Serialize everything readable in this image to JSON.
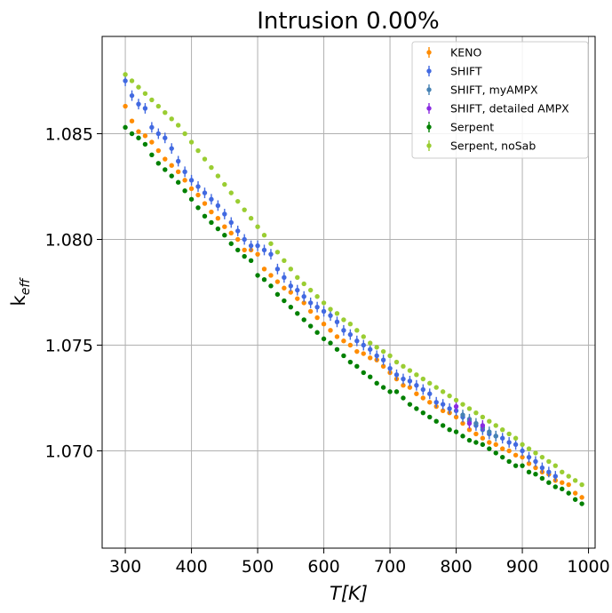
{
  "chart_data": {
    "type": "scatter",
    "title": "Intrusion  0.00%",
    "xlabel": "T[K]",
    "ylabel": "k_eff",
    "ylabel_main": "k",
    "ylabel_sub": "eff",
    "xlim": [
      265,
      1010
    ],
    "ylim": [
      1.0654,
      1.0896
    ],
    "xticks": [
      300,
      400,
      500,
      600,
      700,
      800,
      900,
      1000
    ],
    "xtick_labels": [
      "300",
      "400",
      "500",
      "600",
      "700",
      "800",
      "900",
      "1000"
    ],
    "yticks": [
      1.07,
      1.075,
      1.08,
      1.085
    ],
    "ytick_labels": [
      "1.070",
      "1.075",
      "1.080",
      "1.085"
    ],
    "grid": true,
    "legend_position": "top-right",
    "series": [
      {
        "name": "KENO",
        "color": "#ff8c00",
        "has_error_bars": true,
        "x": [
          300,
          310,
          320,
          330,
          340,
          350,
          360,
          370,
          380,
          390,
          400,
          410,
          420,
          430,
          440,
          450,
          460,
          470,
          480,
          490,
          500,
          510,
          520,
          530,
          540,
          550,
          560,
          570,
          580,
          590,
          600,
          610,
          620,
          630,
          640,
          650,
          660,
          670,
          680,
          690,
          700,
          710,
          720,
          730,
          740,
          750,
          760,
          770,
          780,
          790,
          800,
          810,
          820,
          830,
          840,
          850,
          860,
          870,
          880,
          890,
          900,
          910,
          920,
          930,
          940,
          950,
          960,
          970,
          980,
          990
        ],
        "y": [
          1.0863,
          1.0856,
          1.0851,
          1.0849,
          1.0846,
          1.0842,
          1.0838,
          1.0835,
          1.0832,
          1.0828,
          1.0824,
          1.0821,
          1.0817,
          1.0813,
          1.081,
          1.0806,
          1.0803,
          1.08,
          1.0795,
          1.0795,
          1.0793,
          1.0786,
          1.0783,
          1.078,
          1.0777,
          1.0775,
          1.0772,
          1.077,
          1.0766,
          1.0763,
          1.076,
          1.0757,
          1.0754,
          1.0752,
          1.075,
          1.0747,
          1.0746,
          1.0744,
          1.0743,
          1.074,
          1.0737,
          1.0734,
          1.0731,
          1.073,
          1.0727,
          1.0725,
          1.0723,
          1.0721,
          1.0719,
          1.0718,
          1.0716,
          1.0713,
          1.071,
          1.0708,
          1.0706,
          1.0704,
          1.0703,
          1.0701,
          1.07,
          1.0698,
          1.0697,
          1.0694,
          1.0692,
          1.069,
          1.0689,
          1.0686,
          1.0685,
          1.0684,
          1.068,
          1.0678
        ],
        "yerr": 6e-05
      },
      {
        "name": "SHIFT",
        "color": "#4169e1",
        "has_error_bars": true,
        "x": [
          300,
          310,
          320,
          330,
          340,
          350,
          360,
          370,
          380,
          390,
          400,
          410,
          420,
          430,
          440,
          450,
          460,
          470,
          480,
          490,
          500,
          510,
          520,
          530,
          540,
          550,
          560,
          570,
          580,
          590,
          600,
          610,
          620,
          630,
          640,
          650,
          660,
          670,
          680,
          690,
          700,
          710,
          720,
          730,
          740,
          750,
          760,
          770,
          780,
          790,
          800,
          810,
          820,
          830,
          840,
          850,
          860,
          870,
          880,
          890,
          900,
          910,
          920,
          930,
          940,
          950
        ],
        "y": [
          1.0875,
          1.0868,
          1.0864,
          1.0862,
          1.0853,
          1.085,
          1.0848,
          1.0843,
          1.0837,
          1.0832,
          1.0828,
          1.0825,
          1.0822,
          1.0819,
          1.0816,
          1.0812,
          1.0808,
          1.0804,
          1.08,
          1.0797,
          1.0797,
          1.0795,
          1.0793,
          1.0786,
          1.0782,
          1.0778,
          1.0776,
          1.0773,
          1.077,
          1.0768,
          1.0766,
          1.0764,
          1.0761,
          1.0757,
          1.0755,
          1.0752,
          1.075,
          1.0748,
          1.0745,
          1.0743,
          1.0739,
          1.0736,
          1.0734,
          1.0733,
          1.0731,
          1.0729,
          1.0727,
          1.0723,
          1.0722,
          1.072,
          1.0719,
          1.0716,
          1.0714,
          1.0712,
          1.071,
          1.0708,
          1.0707,
          1.0706,
          1.0704,
          1.0703,
          1.07,
          1.0697,
          1.0695,
          1.0692,
          1.069,
          1.0688
        ],
        "yerr": 0.00025
      },
      {
        "name": "SHIFT, myAMPX",
        "color": "#4682b4",
        "has_error_bars": true,
        "x": [
          810,
          820,
          830,
          840,
          850,
          860
        ],
        "y": [
          1.0717,
          1.0715,
          1.0713,
          1.0711,
          1.0709,
          1.0707
        ],
        "yerr": 0.00025
      },
      {
        "name": "SHIFT, detailed AMPX",
        "color": "#8a2be2",
        "has_error_bars": true,
        "x": [
          800,
          820,
          840
        ],
        "y": [
          1.0721,
          1.0713,
          1.0712
        ],
        "yerr": 0.00025
      },
      {
        "name": "Serpent",
        "color": "#008000",
        "has_error_bars": true,
        "x": [
          300,
          310,
          320,
          330,
          340,
          350,
          360,
          370,
          380,
          390,
          400,
          410,
          420,
          430,
          440,
          450,
          460,
          470,
          480,
          490,
          500,
          510,
          520,
          530,
          540,
          550,
          560,
          570,
          580,
          590,
          600,
          610,
          620,
          630,
          640,
          650,
          660,
          670,
          680,
          690,
          700,
          710,
          720,
          730,
          740,
          750,
          760,
          770,
          780,
          790,
          800,
          810,
          820,
          830,
          840,
          850,
          860,
          870,
          880,
          890,
          900,
          910,
          920,
          930,
          940,
          950,
          960,
          970,
          980,
          990
        ],
        "y": [
          1.0853,
          1.085,
          1.0848,
          1.0845,
          1.084,
          1.0836,
          1.0833,
          1.083,
          1.0827,
          1.0823,
          1.0819,
          1.0815,
          1.0811,
          1.0808,
          1.0805,
          1.0802,
          1.0798,
          1.0795,
          1.0792,
          1.079,
          1.0783,
          1.0781,
          1.0778,
          1.0774,
          1.0771,
          1.0768,
          1.0765,
          1.0762,
          1.0759,
          1.0756,
          1.0753,
          1.0751,
          1.0748,
          1.0745,
          1.0742,
          1.074,
          1.0737,
          1.0735,
          1.0732,
          1.073,
          1.0728,
          1.0728,
          1.0725,
          1.0722,
          1.072,
          1.0718,
          1.0716,
          1.0714,
          1.0712,
          1.071,
          1.0709,
          1.0707,
          1.0705,
          1.0704,
          1.0703,
          1.0701,
          1.0699,
          1.0697,
          1.0695,
          1.0693,
          1.0693,
          1.069,
          1.0689,
          1.0687,
          1.0685,
          1.0683,
          1.0682,
          1.068,
          1.0677,
          1.0675
        ],
        "yerr": 5e-05
      },
      {
        "name": "Serpent, noSab",
        "color": "#9acd32",
        "has_error_bars": true,
        "x": [
          300,
          310,
          320,
          330,
          340,
          350,
          360,
          370,
          380,
          390,
          400,
          410,
          420,
          430,
          440,
          450,
          460,
          470,
          480,
          490,
          500,
          510,
          520,
          530,
          540,
          550,
          560,
          570,
          580,
          590,
          600,
          610,
          620,
          630,
          640,
          650,
          660,
          670,
          680,
          690,
          700,
          710,
          720,
          730,
          740,
          750,
          760,
          770,
          780,
          790,
          800,
          810,
          820,
          830,
          840,
          850,
          860,
          870,
          880,
          890,
          900,
          910,
          920,
          930,
          940,
          950,
          960,
          970,
          980,
          990
        ],
        "y": [
          1.0878,
          1.0875,
          1.0872,
          1.0869,
          1.0866,
          1.0863,
          1.086,
          1.0857,
          1.0854,
          1.085,
          1.0846,
          1.0842,
          1.0838,
          1.0834,
          1.083,
          1.0826,
          1.0822,
          1.0818,
          1.0814,
          1.081,
          1.0806,
          1.0802,
          1.0798,
          1.0794,
          1.079,
          1.0786,
          1.0782,
          1.0779,
          1.0776,
          1.0773,
          1.077,
          1.0767,
          1.0765,
          1.0762,
          1.076,
          1.0757,
          1.0754,
          1.0751,
          1.0749,
          1.0747,
          1.0745,
          1.0742,
          1.074,
          1.0738,
          1.0736,
          1.0734,
          1.0732,
          1.073,
          1.0728,
          1.0726,
          1.0724,
          1.0722,
          1.072,
          1.0718,
          1.0716,
          1.0714,
          1.0712,
          1.071,
          1.0708,
          1.0706,
          1.0703,
          1.0701,
          1.0699,
          1.0697,
          1.0695,
          1.0693,
          1.069,
          1.0688,
          1.0686,
          1.0684
        ],
        "yerr": 5e-05
      }
    ]
  }
}
